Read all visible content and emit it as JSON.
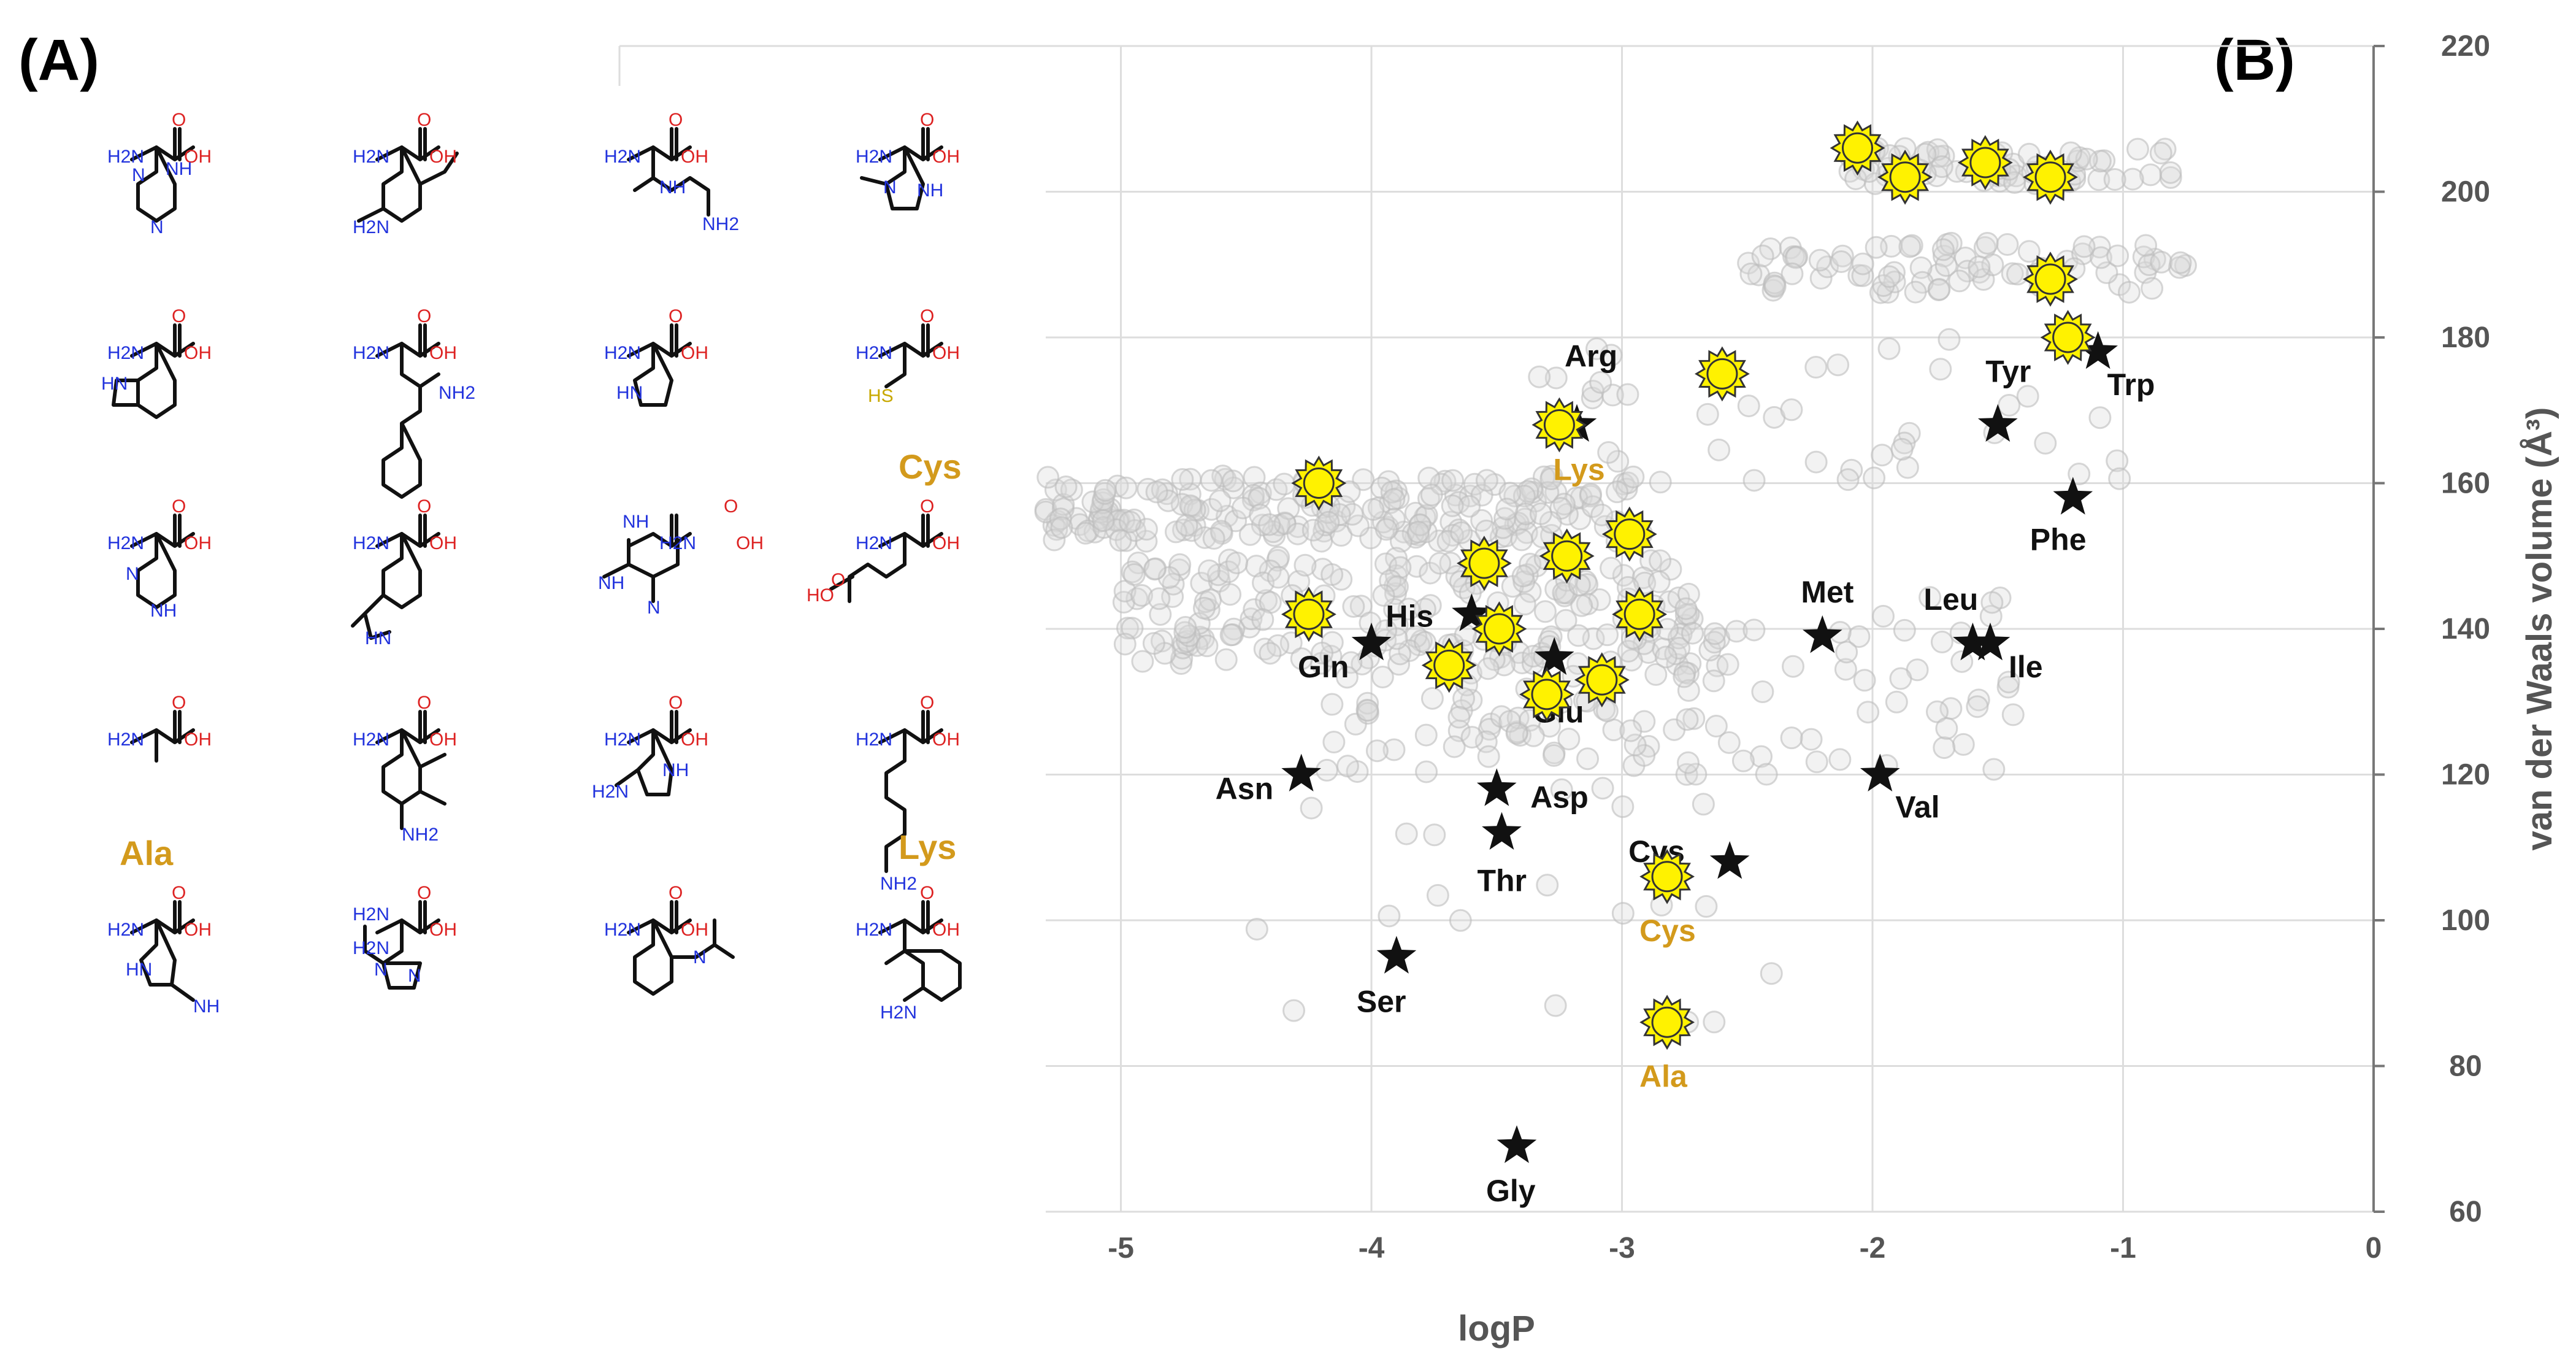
{
  "panels": {
    "a_label": "(A)",
    "b_label": "(B)"
  },
  "colors": {
    "natural": "#111111",
    "designed_fill": "#fff200",
    "designed_stroke": "#333333",
    "candidate_fill": "#d9d9d9",
    "highlight_label": "#d39a1c",
    "grid": "#dddddd",
    "axis_text": "#555555",
    "nitrogen": "#2233dd",
    "oxygen": "#dd2222",
    "sulfur": "#c8a800"
  },
  "molecules": [
    {
      "atoms": [
        "H2N",
        "O",
        "OH",
        "N",
        "NH",
        "N"
      ]
    },
    {
      "atoms": [
        "H2N",
        "O",
        "OH",
        "H2N"
      ]
    },
    {
      "atoms": [
        "H2N",
        "O",
        "OH",
        "NH",
        "NH2"
      ]
    },
    {
      "atoms": [
        "H2N",
        "O",
        "OH",
        "N",
        "NH"
      ]
    },
    {
      "atoms": [
        "H2N",
        "O",
        "OH",
        "HN"
      ]
    },
    {
      "atoms": [
        "H2N",
        "O",
        "OH",
        "NH2"
      ]
    },
    {
      "atoms": [
        "H2N",
        "O",
        "OH",
        "HN"
      ]
    },
    {
      "atoms": [
        "H2N",
        "O",
        "OH",
        "HS"
      ],
      "label": "Cys"
    },
    {
      "atoms": [
        "H2N",
        "O",
        "OH",
        "N",
        "NH"
      ]
    },
    {
      "atoms": [
        "H2N",
        "O",
        "OH",
        "HN"
      ]
    },
    {
      "atoms": [
        "NH",
        "NH",
        "H2N",
        "O",
        "OH",
        "N"
      ]
    },
    {
      "atoms": [
        "H2N",
        "O",
        "OH",
        "O",
        "HO"
      ]
    },
    {
      "atoms": [
        "H2N",
        "O",
        "OH"
      ],
      "label": "Ala"
    },
    {
      "atoms": [
        "H2N",
        "O",
        "OH",
        "NH2"
      ]
    },
    {
      "atoms": [
        "H2N",
        "O",
        "OH",
        "NH",
        "H2N"
      ]
    },
    {
      "atoms": [
        "H2N",
        "O",
        "OH",
        "NH2"
      ],
      "label": "Lys"
    },
    {
      "atoms": [
        "H2N",
        "O",
        "OH",
        "HN",
        "NH"
      ]
    },
    {
      "atoms": [
        "H2N",
        "H2N",
        "O",
        "OH",
        "N",
        "N"
      ]
    },
    {
      "atoms": [
        "H2N",
        "O",
        "OH",
        "N"
      ]
    },
    {
      "atoms": [
        "H2N",
        "O",
        "OH",
        "H2N"
      ]
    }
  ],
  "chart_data": {
    "type": "scatter",
    "xlabel": "logP",
    "ylabel": "van der Waals volume (Å³)",
    "xlim": [
      -5.3,
      0
    ],
    "ylim": [
      60,
      220
    ],
    "xticks": [
      "-5",
      "-4",
      "-3",
      "-2",
      "-1",
      "0"
    ],
    "yticks": [
      "60",
      "80",
      "100",
      "120",
      "140",
      "160",
      "180",
      "200",
      "220"
    ],
    "grid": true,
    "natural_amino_acids": [
      {
        "name": "Gly",
        "x": -3.42,
        "y": 69
      },
      {
        "name": "Ser",
        "x": -3.9,
        "y": 95
      },
      {
        "name": "Thr",
        "x": -3.48,
        "y": 112
      },
      {
        "name": "Asp",
        "x": -3.5,
        "y": 118
      },
      {
        "name": "Asn",
        "x": -4.28,
        "y": 120
      },
      {
        "name": "Gln",
        "x": -4.0,
        "y": 138
      },
      {
        "name": "His",
        "x": -3.6,
        "y": 142
      },
      {
        "name": "Glu",
        "x": -3.27,
        "y": 136
      },
      {
        "name": "Arg",
        "x": -3.18,
        "y": 168
      },
      {
        "name": "Cys",
        "x": -2.57,
        "y": 108
      },
      {
        "name": "Val",
        "x": -1.97,
        "y": 120
      },
      {
        "name": "Met",
        "x": -2.2,
        "y": 139
      },
      {
        "name": "Leu",
        "x": -1.6,
        "y": 138
      },
      {
        "name": "Ile",
        "x": -1.53,
        "y": 138
      },
      {
        "name": "Tyr",
        "x": -1.5,
        "y": 168
      },
      {
        "name": "Phe",
        "x": -1.2,
        "y": 158
      },
      {
        "name": "Trp",
        "x": -1.1,
        "y": 178
      }
    ],
    "designed_amino_acids": [
      {
        "x": -2.06,
        "y": 206
      },
      {
        "x": -1.87,
        "y": 202
      },
      {
        "x": -1.55,
        "y": 204
      },
      {
        "x": -1.29,
        "y": 202
      },
      {
        "x": -1.29,
        "y": 188
      },
      {
        "x": -1.22,
        "y": 180
      },
      {
        "x": -2.6,
        "y": 175
      },
      {
        "x": -3.25,
        "y": 168,
        "label": "Lys"
      },
      {
        "x": -4.21,
        "y": 160
      },
      {
        "x": -2.97,
        "y": 153
      },
      {
        "x": -3.22,
        "y": 150
      },
      {
        "x": -3.55,
        "y": 149
      },
      {
        "x": -4.25,
        "y": 142
      },
      {
        "x": -2.93,
        "y": 142
      },
      {
        "x": -3.49,
        "y": 140
      },
      {
        "x": -3.69,
        "y": 135
      },
      {
        "x": -3.08,
        "y": 133
      },
      {
        "x": -3.3,
        "y": 131
      },
      {
        "x": -2.82,
        "y": 106,
        "label": "Cys"
      },
      {
        "x": -2.82,
        "y": 86,
        "label": "Ala"
      }
    ],
    "candidate_clusters": [
      {
        "x_range": [
          -2.1,
          -0.75
        ],
        "y_range": [
          201,
          206
        ],
        "count": 70
      },
      {
        "x_range": [
          -2.55,
          -0.7
        ],
        "y_range": [
          186,
          193
        ],
        "count": 80
      },
      {
        "x_range": [
          -5.3,
          -2.9
        ],
        "y_range": [
          152,
          161
        ],
        "count": 220
      },
      {
        "x_range": [
          -5.0,
          -2.7
        ],
        "y_range": [
          135,
          150
        ],
        "count": 200
      },
      {
        "x_range": [
          -4.2,
          -2.6
        ],
        "y_range": [
          120,
          140
        ],
        "count": 80
      },
      {
        "x_range": [
          -3.4,
          -1.0
        ],
        "y_range": [
          160,
          180
        ],
        "count": 40
      },
      {
        "x_range": [
          -2.8,
          -1.4
        ],
        "y_range": [
          120,
          145
        ],
        "count": 50
      },
      {
        "x_range": [
          -4.5,
          -2.4
        ],
        "y_range": [
          85,
          120
        ],
        "count": 20
      }
    ]
  }
}
